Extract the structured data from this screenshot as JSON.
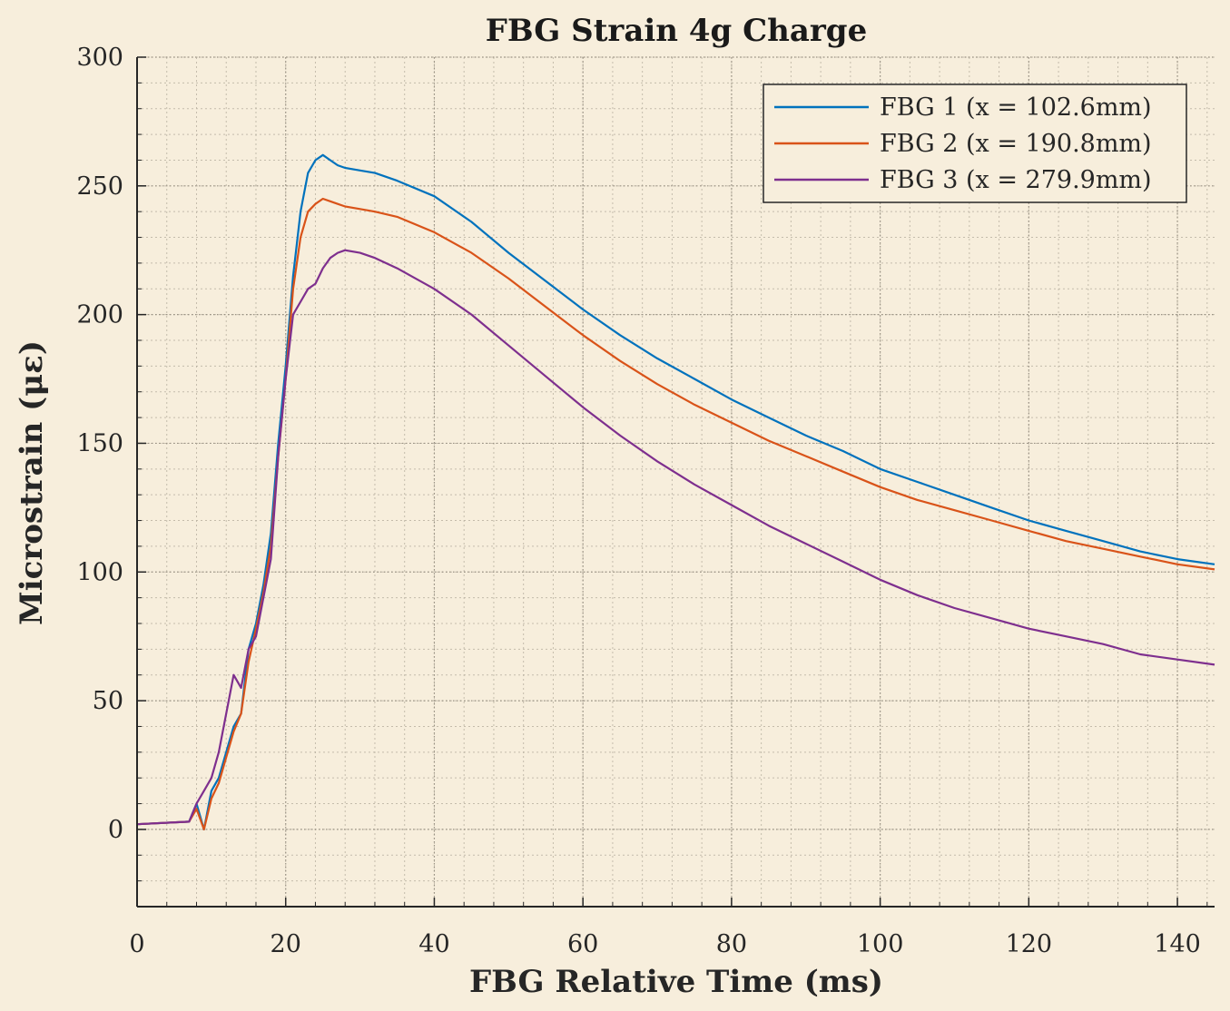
{
  "chart_data": {
    "type": "line",
    "title": "FBG Strain 4g Charge",
    "xlabel": "FBG Relative Time (ms)",
    "ylabel": "Microstrain (με)",
    "xlim": [
      0,
      145
    ],
    "ylim": [
      -30,
      300
    ],
    "xticks": [
      0,
      20,
      40,
      60,
      80,
      100,
      120,
      140
    ],
    "yticks": [
      0,
      50,
      100,
      150,
      200,
      250,
      300
    ],
    "grid": "on (major and minor)",
    "legend_position": "top-right",
    "series": [
      {
        "name": "FBG 1 (x = 102.6mm)",
        "color": "#0072bd",
        "x": [
          0,
          7,
          8,
          9,
          10,
          11,
          12,
          13,
          14,
          15,
          16,
          17,
          18,
          19,
          20,
          21,
          22,
          23,
          24,
          25,
          26,
          27,
          28,
          30,
          32,
          35,
          40,
          45,
          50,
          55,
          60,
          65,
          70,
          75,
          80,
          85,
          90,
          95,
          100,
          105,
          110,
          115,
          120,
          125,
          130,
          135,
          140,
          145
        ],
        "y": [
          2,
          3,
          10,
          0,
          15,
          20,
          30,
          40,
          45,
          70,
          80,
          95,
          115,
          150,
          180,
          215,
          240,
          255,
          260,
          262,
          260,
          258,
          257,
          256,
          255,
          252,
          246,
          236,
          224,
          213,
          202,
          192,
          183,
          175,
          167,
          160,
          153,
          147,
          140,
          135,
          130,
          125,
          120,
          116,
          112,
          108,
          105,
          103
        ]
      },
      {
        "name": "FBG 2 (x = 190.8mm)",
        "color": "#d95319",
        "x": [
          0,
          7,
          8,
          9,
          10,
          11,
          12,
          13,
          14,
          15,
          16,
          17,
          18,
          19,
          20,
          21,
          22,
          23,
          24,
          25,
          26,
          27,
          28,
          30,
          32,
          35,
          40,
          45,
          50,
          55,
          60,
          65,
          70,
          75,
          80,
          85,
          90,
          95,
          100,
          105,
          110,
          115,
          120,
          125,
          130,
          135,
          140,
          145
        ],
        "y": [
          2,
          3,
          8,
          0,
          12,
          18,
          28,
          38,
          45,
          65,
          78,
          92,
          110,
          145,
          175,
          210,
          230,
          240,
          243,
          245,
          244,
          243,
          242,
          241,
          240,
          238,
          232,
          224,
          214,
          203,
          192,
          182,
          173,
          165,
          158,
          151,
          145,
          139,
          133,
          128,
          124,
          120,
          116,
          112,
          109,
          106,
          103,
          101
        ]
      },
      {
        "name": "FBG 3 (x = 279.9mm)",
        "color": "#7e2f8e",
        "x": [
          0,
          7,
          8,
          9,
          10,
          11,
          12,
          13,
          14,
          15,
          16,
          17,
          18,
          19,
          20,
          21,
          22,
          23,
          24,
          25,
          26,
          27,
          28,
          30,
          32,
          35,
          40,
          45,
          50,
          55,
          60,
          65,
          70,
          75,
          80,
          85,
          90,
          95,
          100,
          105,
          110,
          115,
          120,
          125,
          130,
          135,
          140,
          145
        ],
        "y": [
          2,
          3,
          10,
          15,
          20,
          30,
          45,
          60,
          55,
          70,
          75,
          90,
          105,
          145,
          175,
          200,
          205,
          210,
          212,
          218,
          222,
          224,
          225,
          224,
          222,
          218,
          210,
          200,
          188,
          176,
          164,
          153,
          143,
          134,
          126,
          118,
          111,
          104,
          97,
          91,
          86,
          82,
          78,
          75,
          72,
          68,
          66,
          64
        ]
      }
    ]
  }
}
